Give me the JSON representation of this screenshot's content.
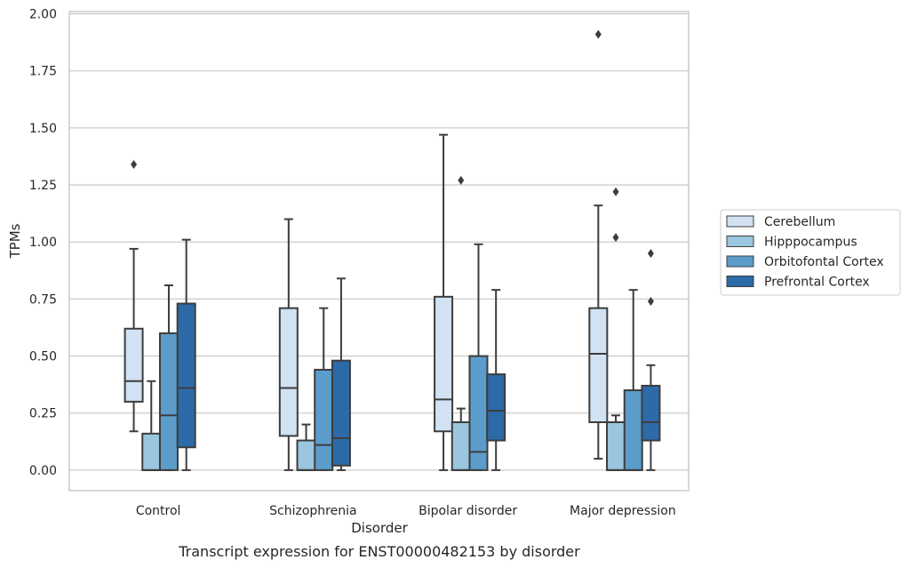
{
  "chart_data": {
    "type": "box",
    "xlabel": "Disorder",
    "ylabel": "TPMs",
    "caption": "Transcript expression for ENST00000482153 by disorder",
    "ylim": [
      -0.09,
      2.01
    ],
    "yticks": [
      "0.00",
      "0.25",
      "0.50",
      "0.75",
      "1.00",
      "1.25",
      "1.50",
      "1.75",
      "2.00"
    ],
    "grid": true,
    "legend_position": "right",
    "categories": [
      "Control",
      "Schizophrenia",
      "Bipolar disorder",
      "Major depression"
    ],
    "series": [
      {
        "name": "Cerebellum",
        "color": "#d1e2f2",
        "boxes": [
          {
            "whislo": 0.17,
            "q1": 0.3,
            "median": 0.39,
            "q3": 0.62,
            "whishi": 0.97,
            "fliers": [
              1.34
            ]
          },
          {
            "whislo": 0.0,
            "q1": 0.15,
            "median": 0.36,
            "q3": 0.71,
            "whishi": 1.1,
            "fliers": []
          },
          {
            "whislo": 0.0,
            "q1": 0.17,
            "median": 0.31,
            "q3": 0.76,
            "whishi": 1.47,
            "fliers": []
          },
          {
            "whislo": 0.05,
            "q1": 0.21,
            "median": 0.51,
            "q3": 0.71,
            "whishi": 1.16,
            "fliers": [
              1.91
            ]
          }
        ]
      },
      {
        "name": "Hipppocampus",
        "color": "#9ac6df",
        "boxes": [
          {
            "whislo": 0.0,
            "q1": 0.0,
            "median": 0.0,
            "q3": 0.16,
            "whishi": 0.39,
            "fliers": []
          },
          {
            "whislo": 0.0,
            "q1": 0.0,
            "median": 0.0,
            "q3": 0.13,
            "whishi": 0.2,
            "fliers": []
          },
          {
            "whislo": 0.0,
            "q1": 0.0,
            "median": 0.0,
            "q3": 0.21,
            "whishi": 0.27,
            "fliers": [
              1.27
            ]
          },
          {
            "whislo": 0.0,
            "q1": 0.0,
            "median": 0.0,
            "q3": 0.21,
            "whishi": 0.24,
            "fliers": [
              1.02,
              1.22
            ]
          }
        ]
      },
      {
        "name": "Orbitofontal Cortex",
        "color": "#5b9ccb",
        "boxes": [
          {
            "whislo": 0.0,
            "q1": 0.0,
            "median": 0.24,
            "q3": 0.6,
            "whishi": 0.81,
            "fliers": []
          },
          {
            "whislo": 0.0,
            "q1": 0.0,
            "median": 0.11,
            "q3": 0.44,
            "whishi": 0.71,
            "fliers": []
          },
          {
            "whislo": 0.0,
            "q1": 0.0,
            "median": 0.08,
            "q3": 0.5,
            "whishi": 0.99,
            "fliers": []
          },
          {
            "whislo": 0.0,
            "q1": 0.0,
            "median": 0.0,
            "q3": 0.35,
            "whishi": 0.79,
            "fliers": []
          }
        ]
      },
      {
        "name": "Prefrontal Cortex",
        "color": "#2c6aa8",
        "boxes": [
          {
            "whislo": 0.0,
            "q1": 0.1,
            "median": 0.36,
            "q3": 0.73,
            "whishi": 1.01,
            "fliers": []
          },
          {
            "whislo": 0.0,
            "q1": 0.02,
            "median": 0.14,
            "q3": 0.48,
            "whishi": 0.84,
            "fliers": []
          },
          {
            "whislo": 0.0,
            "q1": 0.13,
            "median": 0.26,
            "q3": 0.42,
            "whishi": 0.79,
            "fliers": []
          },
          {
            "whislo": 0.0,
            "q1": 0.13,
            "median": 0.21,
            "q3": 0.37,
            "whishi": 0.46,
            "fliers": [
              0.74,
              0.95
            ]
          }
        ]
      }
    ],
    "colors": {
      "outline": "#3d3d3d",
      "grid": "#cccccc",
      "spine": "#cccccc"
    }
  }
}
